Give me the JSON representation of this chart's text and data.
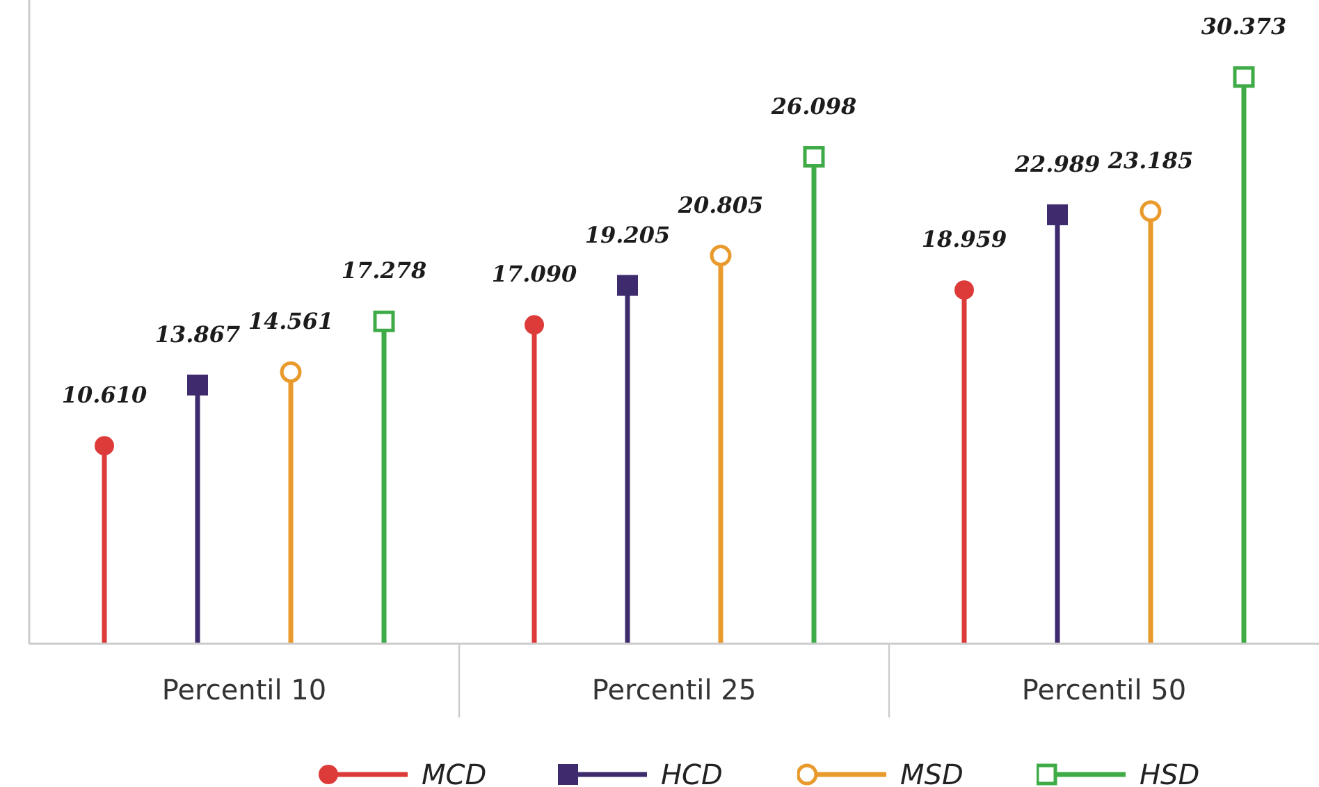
{
  "chart_data": {
    "type": "lollipop",
    "categories": [
      "Percentil 10",
      "Percentil 25",
      "Percentil 50"
    ],
    "series": [
      {
        "name": "MCD",
        "color": "#dc3b39",
        "marker": "circle",
        "values": [
          10.61,
          17.09,
          18.959
        ],
        "value_labels": [
          "10.610",
          "17.090",
          "18.959"
        ]
      },
      {
        "name": "HCD",
        "color": "#3d2b6e",
        "marker": "square",
        "values": [
          13.867,
          19.205,
          22.989
        ],
        "value_labels": [
          "13.867",
          "19.205",
          "22.989"
        ]
      },
      {
        "name": "MSD",
        "color": "#e99a2c",
        "marker": "circle",
        "values": [
          14.561,
          20.805,
          23.185
        ],
        "value_labels": [
          "14.561",
          "20.805",
          "23.185"
        ]
      },
      {
        "name": "HSD",
        "color": "#3fab47",
        "marker": "square",
        "values": [
          17.278,
          26.098,
          30.373
        ],
        "value_labels": [
          "17.278",
          "26.098",
          "30.373"
        ]
      }
    ],
    "ylim": [
      0,
      34.5
    ],
    "tick_labels": "x",
    "legend": "bottom"
  }
}
